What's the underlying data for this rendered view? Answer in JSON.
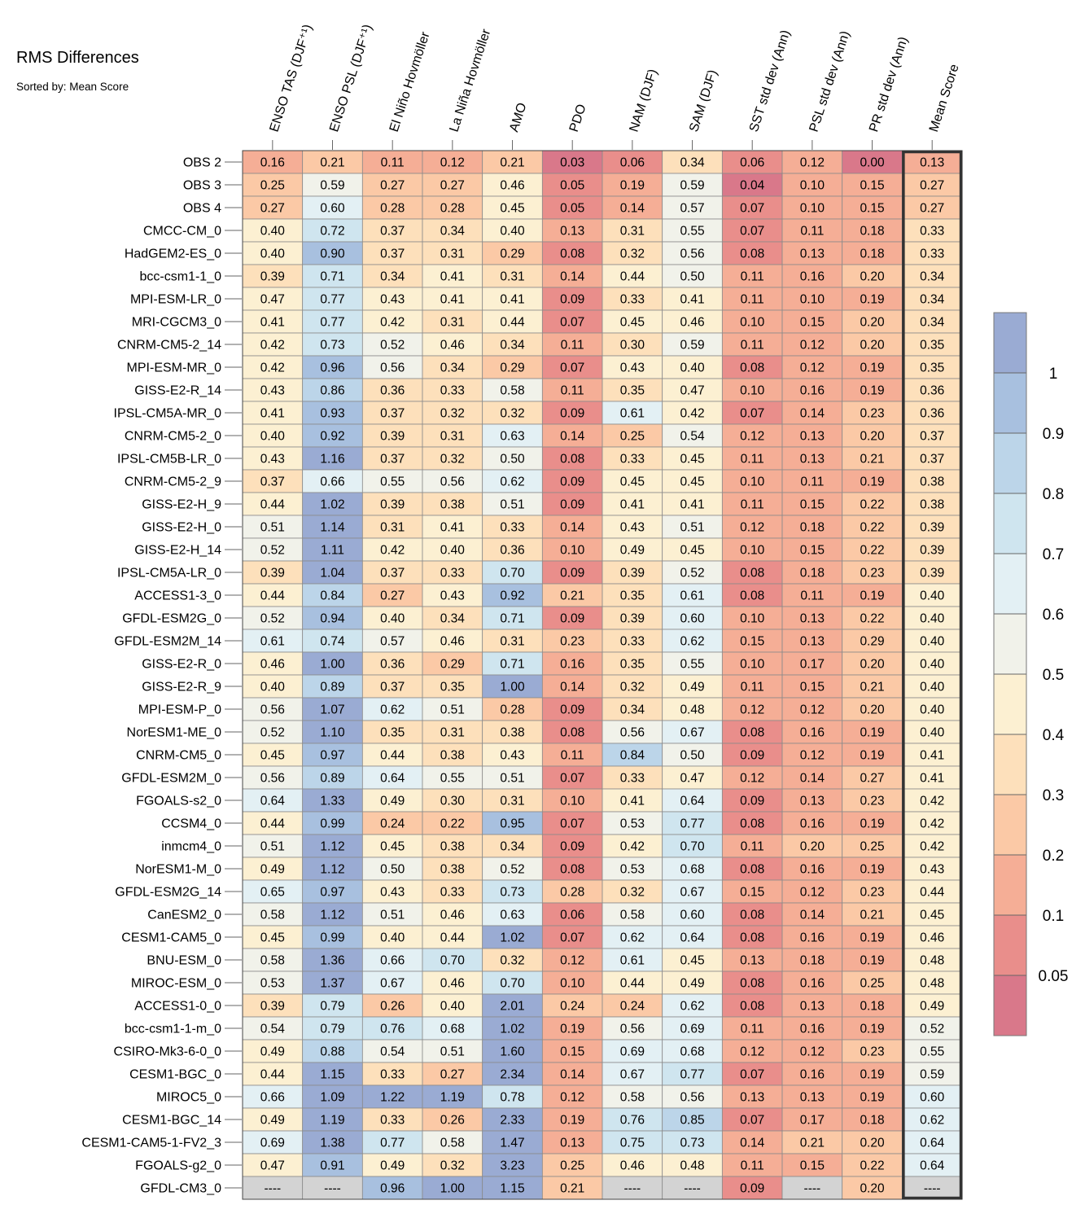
{
  "chart_data": {
    "type": "heatmap",
    "title": "RMS Differences",
    "subtitle": "Sorted by: Mean Score",
    "columns": [
      "ENSO TAS (DJF⁺¹)",
      "ENSO PSL (DJF⁺¹)",
      "El Niño Hovmöller",
      "La Niña Hovmöller",
      "AMO",
      "PDO",
      "NAM (DJF)",
      "SAM (DJF)",
      "SST std dev (Ann)",
      "PSL std dev (Ann)",
      "PR std dev (Ann)",
      "Mean Score"
    ],
    "rows": [
      {
        "name": "OBS 2",
        "values": [
          0.16,
          0.21,
          0.11,
          0.12,
          0.21,
          0.03,
          0.06,
          0.34,
          0.06,
          0.12,
          0.0,
          0.13
        ]
      },
      {
        "name": "OBS 3",
        "values": [
          0.25,
          0.59,
          0.27,
          0.27,
          0.46,
          0.05,
          0.19,
          0.59,
          0.04,
          0.1,
          0.15,
          0.27
        ]
      },
      {
        "name": "OBS 4",
        "values": [
          0.27,
          0.6,
          0.28,
          0.28,
          0.45,
          0.05,
          0.14,
          0.57,
          0.07,
          0.1,
          0.15,
          0.27
        ]
      },
      {
        "name": "CMCC-CM_0",
        "values": [
          0.4,
          0.72,
          0.37,
          0.34,
          0.4,
          0.13,
          0.31,
          0.55,
          0.07,
          0.11,
          0.18,
          0.33
        ]
      },
      {
        "name": "HadGEM2-ES_0",
        "values": [
          0.4,
          0.9,
          0.37,
          0.31,
          0.29,
          0.08,
          0.32,
          0.56,
          0.08,
          0.13,
          0.18,
          0.33
        ]
      },
      {
        "name": "bcc-csm1-1_0",
        "values": [
          0.39,
          0.71,
          0.34,
          0.41,
          0.31,
          0.14,
          0.44,
          0.5,
          0.11,
          0.16,
          0.2,
          0.34
        ]
      },
      {
        "name": "MPI-ESM-LR_0",
        "values": [
          0.47,
          0.77,
          0.43,
          0.41,
          0.41,
          0.09,
          0.33,
          0.41,
          0.11,
          0.1,
          0.19,
          0.34
        ]
      },
      {
        "name": "MRI-CGCM3_0",
        "values": [
          0.41,
          0.77,
          0.42,
          0.31,
          0.44,
          0.07,
          0.45,
          0.46,
          0.1,
          0.15,
          0.2,
          0.34
        ]
      },
      {
        "name": "CNRM-CM5-2_14",
        "values": [
          0.42,
          0.73,
          0.52,
          0.46,
          0.34,
          0.11,
          0.3,
          0.59,
          0.11,
          0.12,
          0.2,
          0.35
        ]
      },
      {
        "name": "MPI-ESM-MR_0",
        "values": [
          0.42,
          0.96,
          0.56,
          0.34,
          0.29,
          0.07,
          0.43,
          0.4,
          0.08,
          0.12,
          0.19,
          0.35
        ]
      },
      {
        "name": "GISS-E2-R_14",
        "values": [
          0.43,
          0.86,
          0.36,
          0.33,
          0.58,
          0.11,
          0.35,
          0.47,
          0.1,
          0.16,
          0.19,
          0.36
        ]
      },
      {
        "name": "IPSL-CM5A-MR_0",
        "values": [
          0.41,
          0.93,
          0.37,
          0.32,
          0.32,
          0.09,
          0.61,
          0.42,
          0.07,
          0.14,
          0.23,
          0.36
        ]
      },
      {
        "name": "CNRM-CM5-2_0",
        "values": [
          0.4,
          0.92,
          0.39,
          0.31,
          0.63,
          0.14,
          0.25,
          0.54,
          0.12,
          0.13,
          0.2,
          0.37
        ]
      },
      {
        "name": "IPSL-CM5B-LR_0",
        "values": [
          0.43,
          1.16,
          0.37,
          0.32,
          0.5,
          0.08,
          0.33,
          0.45,
          0.11,
          0.13,
          0.21,
          0.37
        ]
      },
      {
        "name": "CNRM-CM5-2_9",
        "values": [
          0.37,
          0.66,
          0.55,
          0.56,
          0.62,
          0.09,
          0.45,
          0.45,
          0.1,
          0.11,
          0.19,
          0.38
        ]
      },
      {
        "name": "GISS-E2-H_9",
        "values": [
          0.44,
          1.02,
          0.39,
          0.38,
          0.51,
          0.09,
          0.41,
          0.41,
          0.11,
          0.15,
          0.22,
          0.38
        ]
      },
      {
        "name": "GISS-E2-H_0",
        "values": [
          0.51,
          1.14,
          0.31,
          0.41,
          0.33,
          0.14,
          0.43,
          0.51,
          0.12,
          0.18,
          0.22,
          0.39
        ]
      },
      {
        "name": "GISS-E2-H_14",
        "values": [
          0.52,
          1.11,
          0.42,
          0.4,
          0.36,
          0.1,
          0.49,
          0.45,
          0.1,
          0.15,
          0.22,
          0.39
        ]
      },
      {
        "name": "IPSL-CM5A-LR_0",
        "values": [
          0.39,
          1.04,
          0.37,
          0.33,
          0.7,
          0.09,
          0.39,
          0.52,
          0.08,
          0.18,
          0.23,
          0.39
        ]
      },
      {
        "name": "ACCESS1-3_0",
        "values": [
          0.44,
          0.84,
          0.27,
          0.43,
          0.92,
          0.21,
          0.35,
          0.61,
          0.08,
          0.11,
          0.19,
          0.4
        ]
      },
      {
        "name": "GFDL-ESM2G_0",
        "values": [
          0.52,
          0.94,
          0.4,
          0.34,
          0.71,
          0.09,
          0.39,
          0.6,
          0.1,
          0.13,
          0.22,
          0.4
        ]
      },
      {
        "name": "GFDL-ESM2M_14",
        "values": [
          0.61,
          0.74,
          0.57,
          0.46,
          0.31,
          0.23,
          0.33,
          0.62,
          0.15,
          0.13,
          0.29,
          0.4
        ]
      },
      {
        "name": "GISS-E2-R_0",
        "values": [
          0.46,
          1.0,
          0.36,
          0.29,
          0.71,
          0.16,
          0.35,
          0.55,
          0.1,
          0.17,
          0.2,
          0.4
        ]
      },
      {
        "name": "GISS-E2-R_9",
        "values": [
          0.4,
          0.89,
          0.37,
          0.35,
          1.0,
          0.14,
          0.32,
          0.49,
          0.11,
          0.15,
          0.21,
          0.4
        ]
      },
      {
        "name": "MPI-ESM-P_0",
        "values": [
          0.56,
          1.07,
          0.62,
          0.51,
          0.28,
          0.09,
          0.34,
          0.48,
          0.12,
          0.12,
          0.2,
          0.4
        ]
      },
      {
        "name": "NorESM1-ME_0",
        "values": [
          0.52,
          1.1,
          0.35,
          0.31,
          0.38,
          0.08,
          0.56,
          0.67,
          0.08,
          0.16,
          0.19,
          0.4
        ]
      },
      {
        "name": "CNRM-CM5_0",
        "values": [
          0.45,
          0.97,
          0.44,
          0.38,
          0.43,
          0.11,
          0.84,
          0.5,
          0.09,
          0.12,
          0.19,
          0.41
        ]
      },
      {
        "name": "GFDL-ESM2M_0",
        "values": [
          0.56,
          0.89,
          0.64,
          0.55,
          0.51,
          0.07,
          0.33,
          0.47,
          0.12,
          0.14,
          0.27,
          0.41
        ]
      },
      {
        "name": "FGOALS-s2_0",
        "values": [
          0.64,
          1.33,
          0.49,
          0.3,
          0.31,
          0.1,
          0.41,
          0.64,
          0.09,
          0.13,
          0.23,
          0.42
        ]
      },
      {
        "name": "CCSM4_0",
        "values": [
          0.44,
          0.99,
          0.24,
          0.22,
          0.95,
          0.07,
          0.53,
          0.77,
          0.08,
          0.16,
          0.19,
          0.42
        ]
      },
      {
        "name": "inmcm4_0",
        "values": [
          0.51,
          1.12,
          0.45,
          0.38,
          0.34,
          0.09,
          0.42,
          0.7,
          0.11,
          0.2,
          0.25,
          0.42
        ]
      },
      {
        "name": "NorESM1-M_0",
        "values": [
          0.49,
          1.12,
          0.5,
          0.38,
          0.52,
          0.08,
          0.53,
          0.68,
          0.08,
          0.16,
          0.19,
          0.43
        ]
      },
      {
        "name": "GFDL-ESM2G_14",
        "values": [
          0.65,
          0.97,
          0.43,
          0.33,
          0.73,
          0.28,
          0.32,
          0.67,
          0.15,
          0.12,
          0.23,
          0.44
        ]
      },
      {
        "name": "CanESM2_0",
        "values": [
          0.58,
          1.12,
          0.51,
          0.46,
          0.63,
          0.06,
          0.58,
          0.6,
          0.08,
          0.14,
          0.21,
          0.45
        ]
      },
      {
        "name": "CESM1-CAM5_0",
        "values": [
          0.45,
          0.99,
          0.4,
          0.44,
          1.02,
          0.07,
          0.62,
          0.64,
          0.08,
          0.16,
          0.19,
          0.46
        ]
      },
      {
        "name": "BNU-ESM_0",
        "values": [
          0.58,
          1.36,
          0.66,
          0.7,
          0.32,
          0.12,
          0.61,
          0.45,
          0.13,
          0.18,
          0.19,
          0.48
        ]
      },
      {
        "name": "MIROC-ESM_0",
        "values": [
          0.53,
          1.37,
          0.67,
          0.46,
          0.7,
          0.1,
          0.44,
          0.49,
          0.08,
          0.16,
          0.25,
          0.48
        ]
      },
      {
        "name": "ACCESS1-0_0",
        "values": [
          0.39,
          0.79,
          0.26,
          0.4,
          2.01,
          0.24,
          0.24,
          0.62,
          0.08,
          0.13,
          0.18,
          0.49
        ]
      },
      {
        "name": "bcc-csm1-1-m_0",
        "values": [
          0.54,
          0.79,
          0.76,
          0.68,
          1.02,
          0.19,
          0.56,
          0.69,
          0.11,
          0.16,
          0.19,
          0.52
        ]
      },
      {
        "name": "CSIRO-Mk3-6-0_0",
        "values": [
          0.49,
          0.88,
          0.54,
          0.51,
          1.6,
          0.15,
          0.69,
          0.68,
          0.12,
          0.12,
          0.23,
          0.55
        ]
      },
      {
        "name": "CESM1-BGC_0",
        "values": [
          0.44,
          1.15,
          0.33,
          0.27,
          2.34,
          0.14,
          0.67,
          0.77,
          0.07,
          0.16,
          0.19,
          0.59
        ]
      },
      {
        "name": "MIROC5_0",
        "values": [
          0.66,
          1.09,
          1.22,
          1.19,
          0.78,
          0.12,
          0.58,
          0.56,
          0.13,
          0.13,
          0.19,
          0.6
        ]
      },
      {
        "name": "CESM1-BGC_14",
        "values": [
          0.49,
          1.19,
          0.33,
          0.26,
          2.33,
          0.19,
          0.76,
          0.85,
          0.07,
          0.17,
          0.18,
          0.62
        ]
      },
      {
        "name": "CESM1-CAM5-1-FV2_3",
        "values": [
          0.69,
          1.38,
          0.77,
          0.58,
          1.47,
          0.13,
          0.75,
          0.73,
          0.14,
          0.21,
          0.2,
          0.64
        ]
      },
      {
        "name": "FGOALS-g2_0",
        "values": [
          0.47,
          0.91,
          0.49,
          0.32,
          3.23,
          0.25,
          0.46,
          0.48,
          0.11,
          0.15,
          0.22,
          0.64
        ]
      },
      {
        "name": "GFDL-CM3_0",
        "values": [
          null,
          null,
          0.96,
          1.0,
          1.15,
          0.21,
          null,
          null,
          0.09,
          null,
          0.2,
          null
        ]
      }
    ],
    "missing_text": "----",
    "colorbar": {
      "labels": [
        "1",
        "0.9",
        "0.8",
        "0.7",
        "0.6",
        "0.5",
        "0.4",
        "0.3",
        "0.2",
        "0.1",
        "0.05"
      ],
      "bins": [
        {
          "lo": 1.0,
          "color": "#9aabd3"
        },
        {
          "lo": 0.9,
          "color": "#a8c0df"
        },
        {
          "lo": 0.8,
          "color": "#bcd5e9"
        },
        {
          "lo": 0.7,
          "color": "#cfe5ef"
        },
        {
          "lo": 0.6,
          "color": "#e3f0f4"
        },
        {
          "lo": 0.5,
          "color": "#f1f2ea"
        },
        {
          "lo": 0.4,
          "color": "#fcf0d2"
        },
        {
          "lo": 0.3,
          "color": "#fde0bb"
        },
        {
          "lo": 0.2,
          "color": "#fbc9a6"
        },
        {
          "lo": 0.1,
          "color": "#f5ae96"
        },
        {
          "lo": 0.05,
          "color": "#e98e8b"
        },
        {
          "lo": 0.0,
          "color": "#d9788a"
        }
      ],
      "missing_color": "#d3d3d3"
    }
  }
}
